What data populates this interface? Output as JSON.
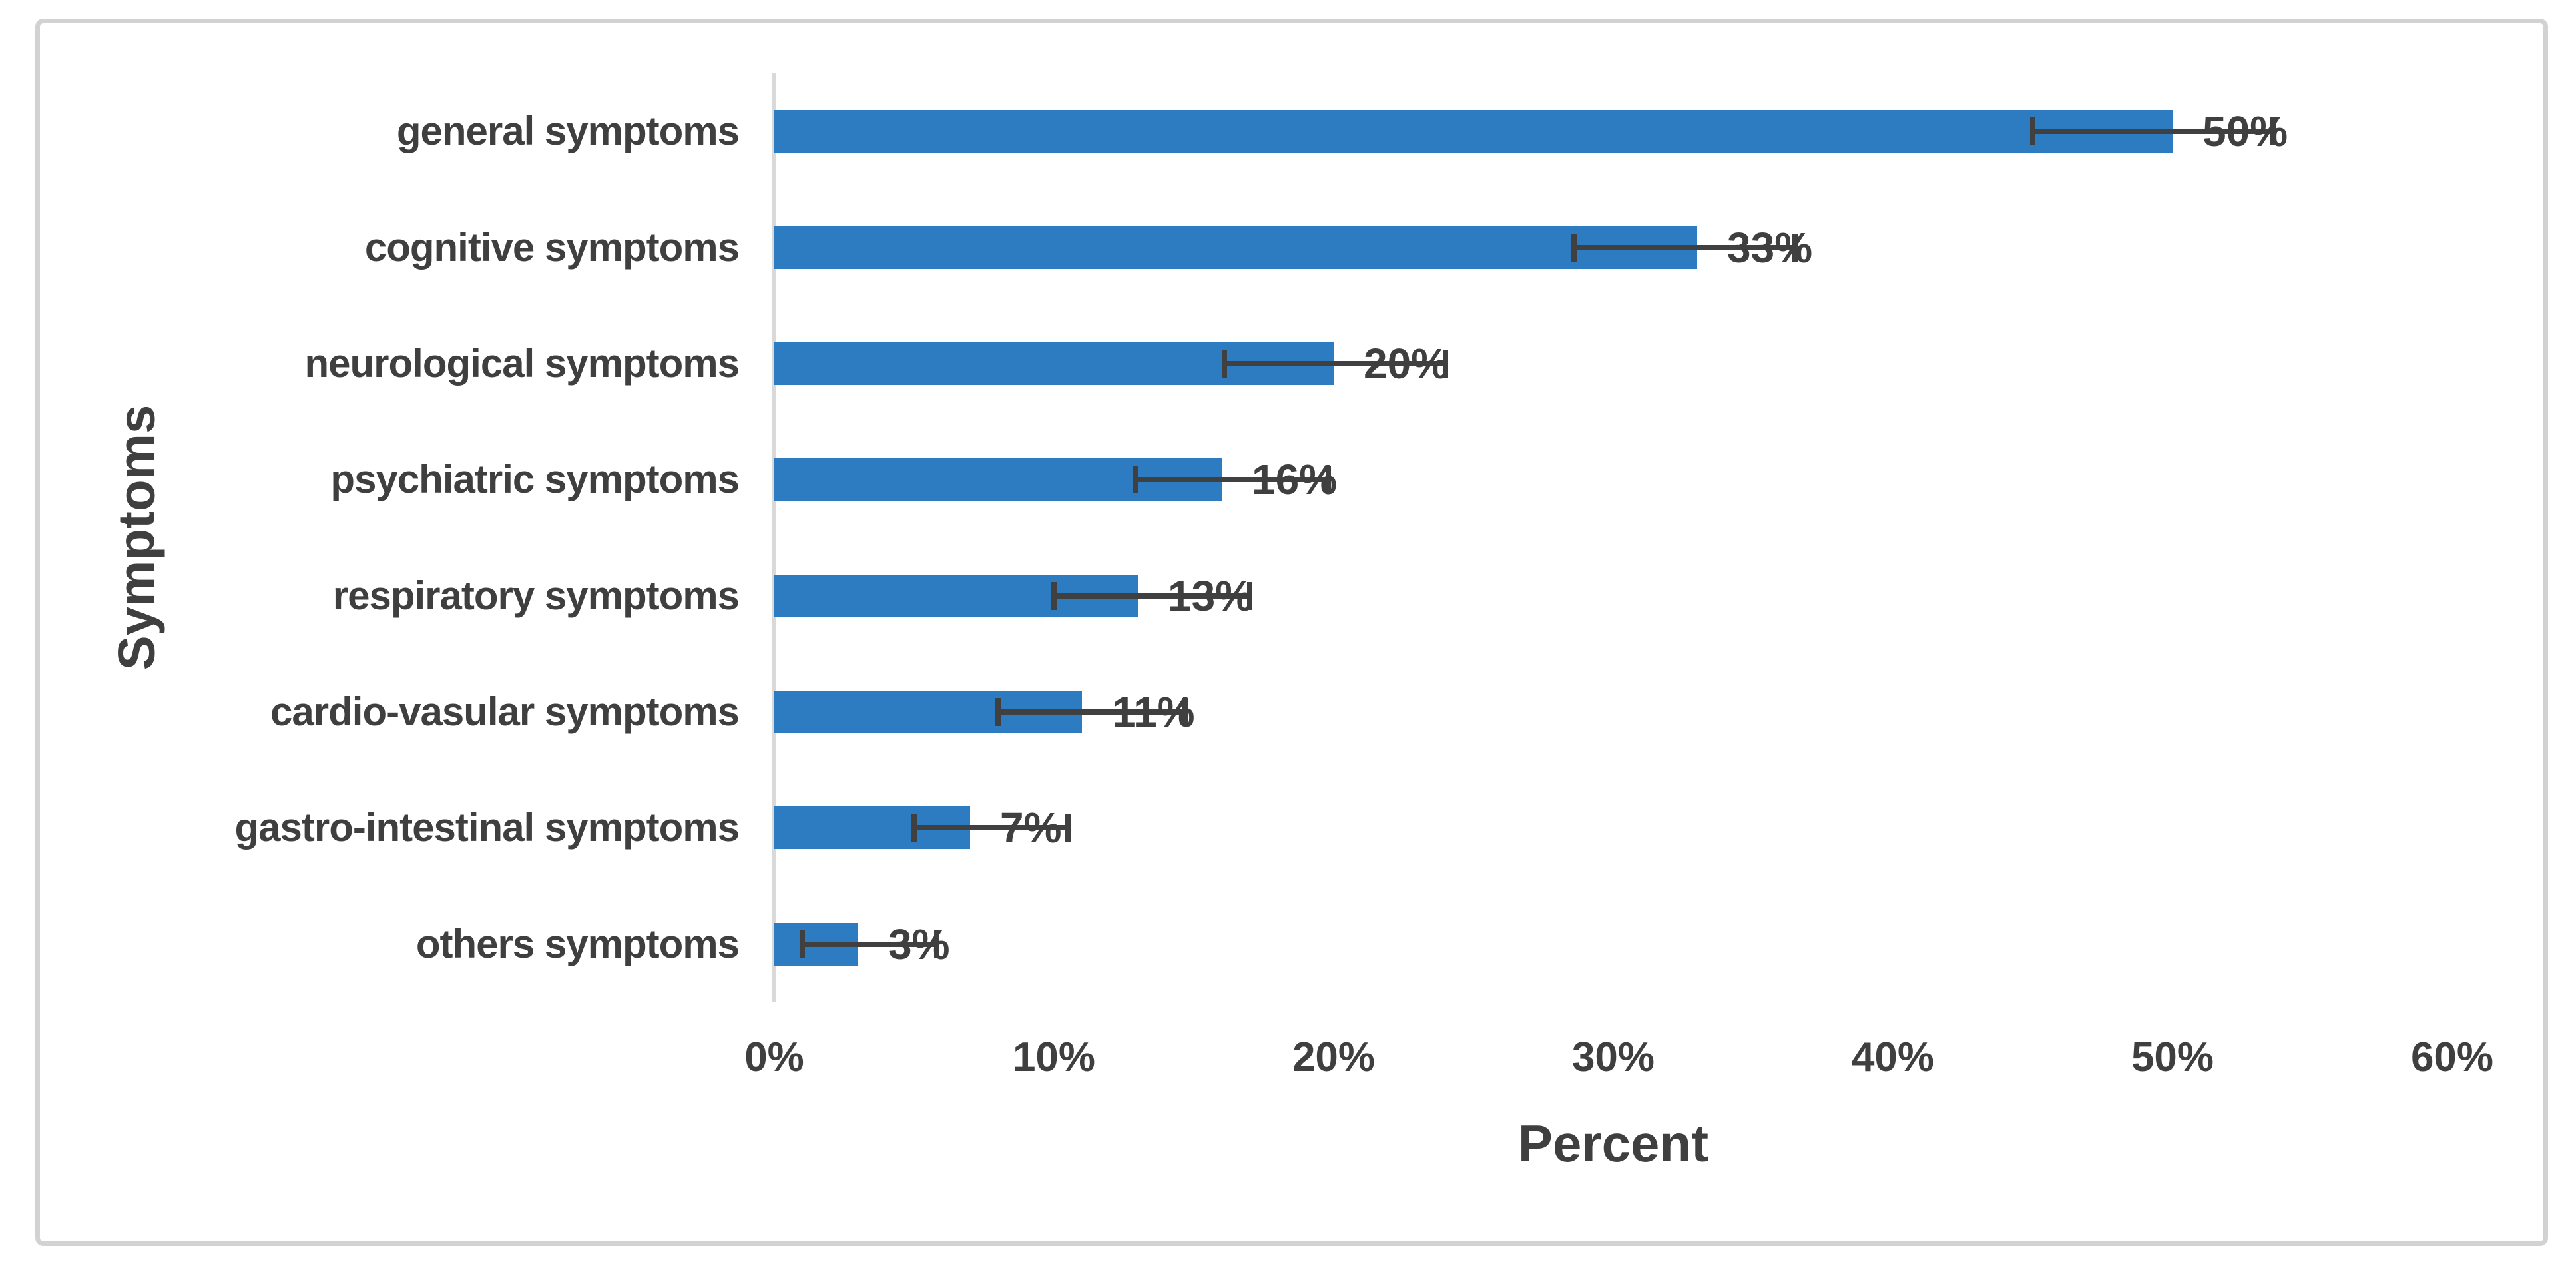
{
  "chart_data": {
    "type": "bar",
    "orientation": "horizontal",
    "title": "",
    "categories": [
      "general symptoms",
      "cognitive symptoms",
      "neurological symptoms",
      "psychiatric symptoms",
      "respiratory symptoms",
      "cardio-vasular symptoms",
      "gastro-intestinal symptoms",
      "others symptoms"
    ],
    "values": [
      50,
      33,
      20,
      16,
      13,
      11,
      7,
      3
    ],
    "data_labels": [
      "50%",
      "33%",
      "20%",
      "16%",
      "13%",
      "11%",
      "7%",
      "3%"
    ],
    "error_bars": {
      "low": [
        45.0,
        28.6,
        16.1,
        12.9,
        10.0,
        8.0,
        5.0,
        1.0
      ],
      "high": [
        53.6,
        36.5,
        24.0,
        19.8,
        17.0,
        14.7,
        10.5,
        5.8
      ]
    },
    "xlabel": "Percent",
    "ylabel": "Symptoms",
    "x_ticks": [
      "0%",
      "10%",
      "20%",
      "30%",
      "40%",
      "50%",
      "60%"
    ],
    "x_tick_values": [
      0,
      10,
      20,
      30,
      40,
      50,
      60
    ],
    "xlim": [
      0,
      60
    ],
    "grid": false,
    "legend": null,
    "colors": {
      "bar": "#2d7cc1",
      "error_bar": "#404040",
      "axis_line": "#d9d9d9",
      "text": "#3f3f3f",
      "frame_border": "#d2d2d2",
      "background": "#ffffff"
    }
  }
}
